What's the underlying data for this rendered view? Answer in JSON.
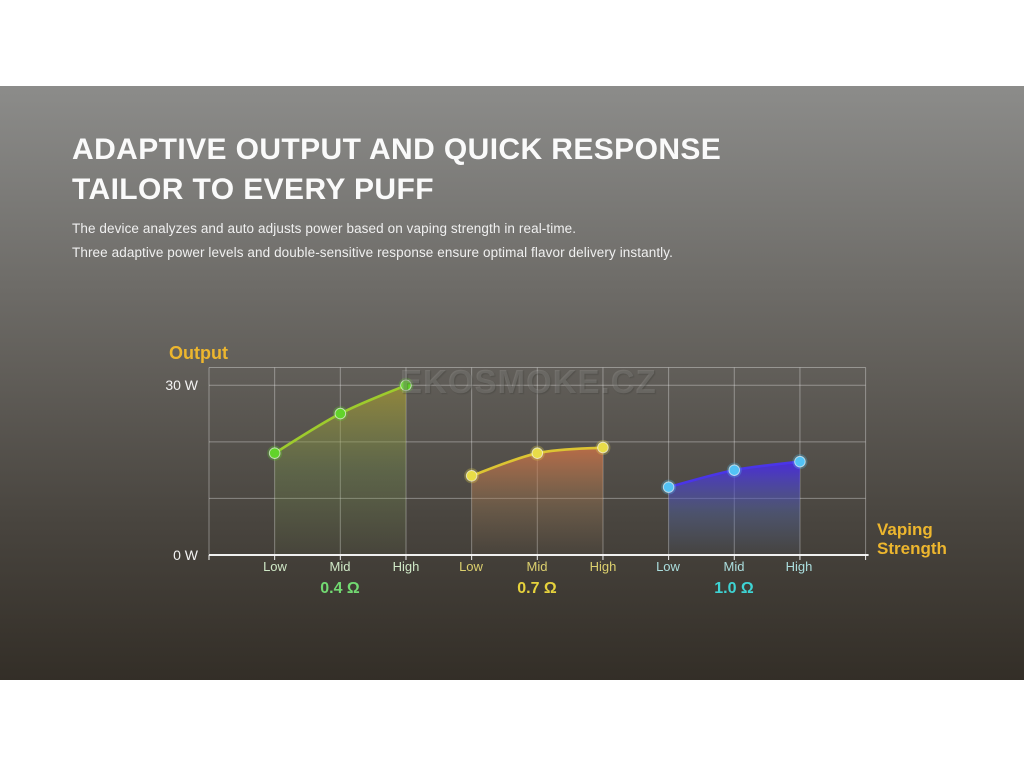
{
  "slide": {
    "title_line1": "ADAPTIVE OUTPUT AND QUICK RESPONSE",
    "title_line2": "TAILOR TO EVERY PUFF",
    "subtitle_line1": "The device analyzes and auto adjusts power based on vaping strength in real-time.",
    "subtitle_line2": "Three adaptive power levels and double-sensitive response ensure optimal flavor delivery instantly.",
    "watermark": "EKOSMOKE.CZ"
  },
  "colors": {
    "accent_gold": "#edb62e",
    "title_text": "#fafafa",
    "subtitle_text": "#f0f0f0",
    "axis_tick_text": "#f2f2f2",
    "gridline": "rgba(240,240,240,0.38)",
    "axis_line": "rgba(250,250,250,0.95)"
  },
  "chart_data": {
    "type": "area",
    "title": "",
    "ylabel": "Output",
    "xlabel": "Vaping Strength",
    "y_ticks": [
      "30 W",
      "0 W"
    ],
    "ylim": [
      0,
      30
    ],
    "grid": true,
    "legend_position": "below-x-axis",
    "categories": [
      "Low",
      "Mid",
      "High"
    ],
    "series": [
      {
        "name": "0.4 Ω",
        "values": [
          18,
          25,
          30
        ],
        "line_color": "#9ecb2d",
        "dot_color": "#62d32a",
        "label_color": "#cfe8c6",
        "name_color": "#72da72",
        "fill_stops": [
          {
            "offset": 0,
            "color": "rgba(175,158,45,0.65)"
          },
          {
            "offset": 0.5,
            "color": "rgba(120,150,75,0.32)"
          },
          {
            "offset": 1,
            "color": "rgba(120,150,75,0.05)"
          }
        ]
      },
      {
        "name": "0.7 Ω",
        "values": [
          14,
          18,
          19
        ],
        "line_color": "#dcc433",
        "dot_color": "#e8dc48",
        "label_color": "#dcd06e",
        "name_color": "#e6d23c",
        "fill_stops": [
          {
            "offset": 0,
            "color": "rgba(210,115,70,0.78)"
          },
          {
            "offset": 0.55,
            "color": "rgba(165,125,85,0.34)"
          },
          {
            "offset": 1,
            "color": "rgba(150,120,85,0.05)"
          }
        ]
      },
      {
        "name": "1.0 Ω",
        "values": [
          12,
          15,
          16.5
        ],
        "line_color": "#4a35e8",
        "dot_color": "#52c2f5",
        "label_color": "#abdede",
        "name_color": "#3ed4d4",
        "fill_stops": [
          {
            "offset": 0,
            "color": "rgba(72,40,228,0.92)"
          },
          {
            "offset": 0.55,
            "color": "rgba(80,100,170,0.42)"
          },
          {
            "offset": 1,
            "color": "rgba(85,110,160,0.06)"
          }
        ]
      }
    ]
  }
}
